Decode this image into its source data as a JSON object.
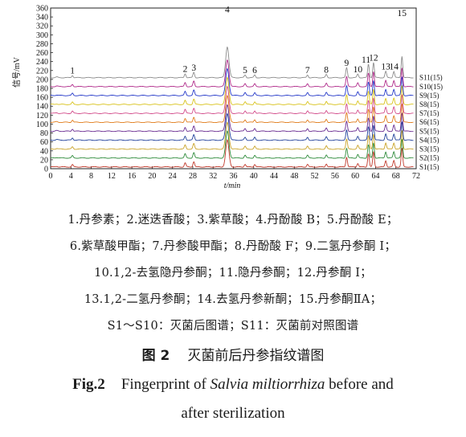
{
  "chart_data": {
    "type": "line",
    "xlabel": "t/min",
    "ylabel": "信号/mV",
    "xlim": [
      0,
      72
    ],
    "ylim": [
      0,
      360
    ],
    "xticks": [
      0,
      4,
      8,
      12,
      16,
      20,
      24,
      28,
      32,
      36,
      40,
      44,
      48,
      52,
      56,
      60,
      64,
      68,
      72
    ],
    "yticks": [
      0,
      20,
      40,
      60,
      80,
      100,
      120,
      140,
      160,
      180,
      200,
      220,
      240,
      260,
      280,
      300,
      320,
      340,
      360
    ],
    "series_offset_mv": 20,
    "series": [
      {
        "name": "S1(15)",
        "color": "#c0392b"
      },
      {
        "name": "S2(15)",
        "color": "#2e8b3a"
      },
      {
        "name": "S3(15)",
        "color": "#c9a227"
      },
      {
        "name": "S4(15)",
        "color": "#1f3f9a"
      },
      {
        "name": "S5(15)",
        "color": "#6a2c91"
      },
      {
        "name": "S6(15)",
        "color": "#e07b1a"
      },
      {
        "name": "S7(15)",
        "color": "#d24b8a"
      },
      {
        "name": "S8(15)",
        "color": "#d8c21a"
      },
      {
        "name": "S9(15)",
        "color": "#2438c8"
      },
      {
        "name": "S10(15)",
        "color": "#b02a8a"
      },
      {
        "name": "S11(15)",
        "color": "#8c8c8c"
      }
    ],
    "peaks": [
      {
        "label": "1",
        "t": 4.3,
        "h": 5
      },
      {
        "label": "2",
        "t": 26.5,
        "h": 9
      },
      {
        "label": "3",
        "t": 28.2,
        "h": 12
      },
      {
        "label": "4",
        "t": 34.8,
        "h": 60
      },
      {
        "label": "5",
        "t": 38.3,
        "h": 6
      },
      {
        "label": "6",
        "t": 40.2,
        "h": 6
      },
      {
        "label": "7",
        "t": 50.6,
        "h": 6
      },
      {
        "label": "8",
        "t": 54.3,
        "h": 7
      },
      {
        "label": "9",
        "t": 58.3,
        "h": 22
      },
      {
        "label": "10",
        "t": 60.5,
        "h": 8
      },
      {
        "label": "11",
        "t": 62.6,
        "h": 30
      },
      {
        "label": "12",
        "t": 63.6,
        "h": 34
      },
      {
        "label": "13",
        "t": 66.0,
        "h": 14
      },
      {
        "label": "14",
        "t": 67.6,
        "h": 14
      },
      {
        "label": "15",
        "t": 69.2,
        "h": 42
      }
    ]
  },
  "legend": {
    "line1": "1.丹参素；2.迷迭香酸；3.紫草酸；4.丹酚酸 B；5.丹酚酸 E；",
    "line2": "6.紫草酸甲酯；7.丹参酸甲酯；8.丹酚酸 F；9.二氢丹参酮 Ⅰ；",
    "line3": "10.1,2-去氢隐丹参酮；11.隐丹参酮；12.丹参酮 Ⅰ；",
    "line4": "13.1,2-二氢丹参酮；14.去氢丹参新酮；15.丹参酮ⅡA；",
    "line5": "S1～S10：灭菌后图谱；S11：灭菌前对照图谱"
  },
  "figure": {
    "zh_label": "图 2",
    "zh_title": "灭菌前后丹参指纹谱图",
    "en_label": "Fig.2",
    "en_title_pre": "Fingerprint of ",
    "en_title_italic": "Salvia miltiorrhiza",
    "en_title_post": " before and",
    "en_title_line2": "after sterilization"
  }
}
